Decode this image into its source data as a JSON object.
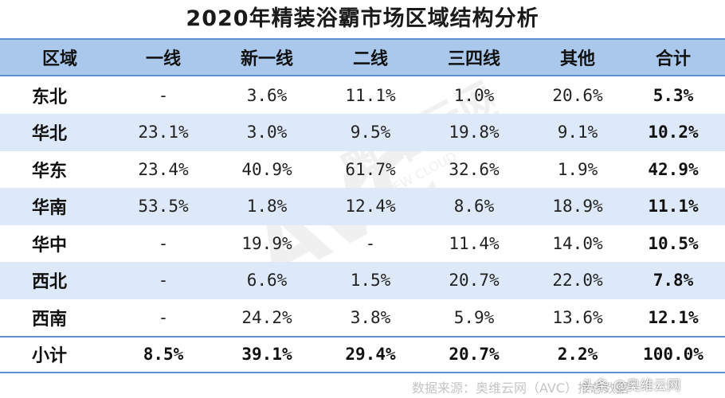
{
  "title": "2020年精装浴霸市场区域结构分析",
  "columns": [
    "区域",
    "一线",
    "新一线",
    "二线",
    "三四线",
    "其他",
    "合计"
  ],
  "rows": [
    {
      "region": "东北",
      "cells": [
        "-",
        "3.6%",
        "11.1%",
        "1.0%",
        "20.6%",
        "5.3%"
      ]
    },
    {
      "region": "华北",
      "cells": [
        "23.1%",
        "3.0%",
        "9.5%",
        "19.8%",
        "9.1%",
        "10.2%"
      ]
    },
    {
      "region": "华东",
      "cells": [
        "23.4%",
        "40.9%",
        "61.7%",
        "32.6%",
        "1.9%",
        "42.9%"
      ]
    },
    {
      "region": "华南",
      "cells": [
        "53.5%",
        "1.8%",
        "12.4%",
        "8.6%",
        "18.9%",
        "11.1%"
      ]
    },
    {
      "region": "华中",
      "cells": [
        "-",
        "19.9%",
        "-",
        "11.4%",
        "14.0%",
        "10.5%"
      ]
    },
    {
      "region": "西北",
      "cells": [
        "-",
        "6.6%",
        "1.5%",
        "20.7%",
        "22.0%",
        "7.8%"
      ]
    },
    {
      "region": "西南",
      "cells": [
        "-",
        "24.2%",
        "3.8%",
        "5.9%",
        "13.6%",
        "12.1%"
      ]
    }
  ],
  "total": {
    "region": "小计",
    "cells": [
      "8.5%",
      "39.1%",
      "29.4%",
      "20.7%",
      "2.2%",
      "100.0%"
    ]
  },
  "source": "数据来源：奥维云网（AVC）推总数据",
  "credit": "头条 @奥维云网",
  "colors": {
    "header_bg": "#aac8ec",
    "row_shade": "#dde9f8",
    "rule": "#5e8fd0"
  }
}
